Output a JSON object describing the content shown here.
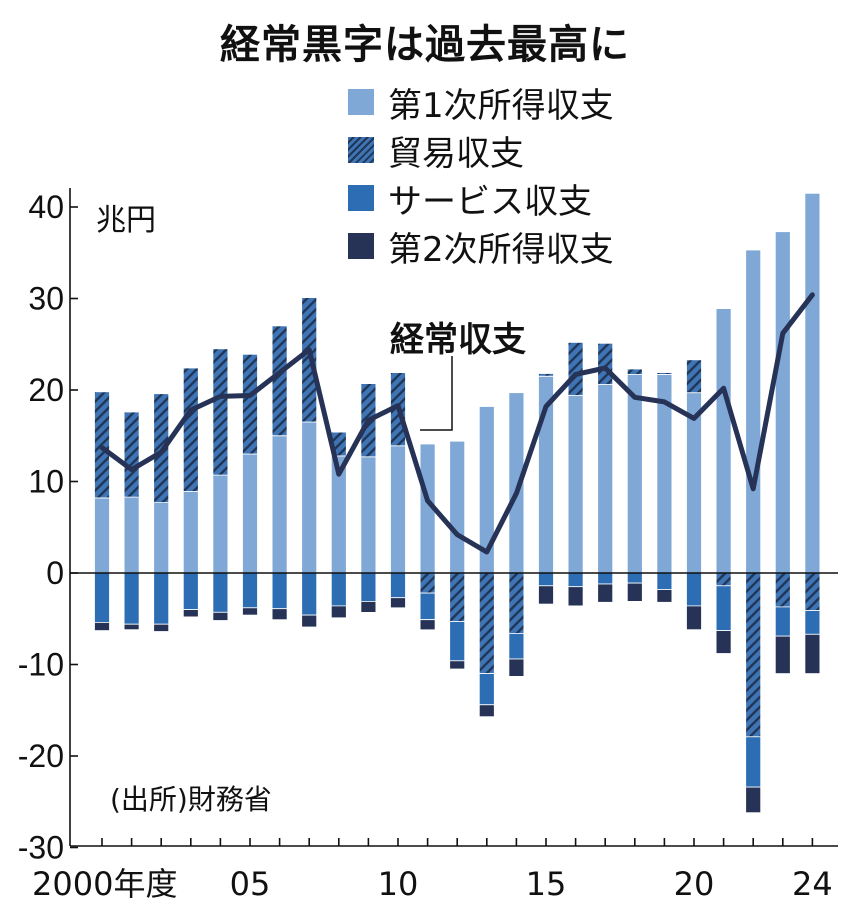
{
  "title": "経常黒字は過去最高に",
  "unit_label": "兆円",
  "source": "(出所)財務省",
  "line_label": "経常収支",
  "colors": {
    "primary_income": "#7fa8d6",
    "trade": "#3f74b5",
    "trade_hatch": "#1f3657",
    "services": "#2d6db3",
    "secondary_income": "#263357",
    "current_account_line": "#263357"
  },
  "legend": [
    {
      "label": "第1次所得収支",
      "color": "#7fa8d6",
      "hatch": false
    },
    {
      "label": "貿易収支",
      "color": "#3f74b5",
      "hatch": true
    },
    {
      "label": "サービス収支",
      "color": "#2d6db3",
      "hatch": false
    },
    {
      "label": "第2次所得収支",
      "color": "#263357",
      "hatch": false
    }
  ],
  "chart_data": {
    "type": "bar",
    "stacked": true,
    "title": "経常黒字は過去最高に",
    "ylabel": "兆円",
    "ylim": [
      -30,
      42
    ],
    "yticks": [
      40,
      30,
      20,
      10,
      0,
      -10,
      -20,
      -30
    ],
    "x": [
      2000,
      2001,
      2002,
      2003,
      2004,
      2005,
      2006,
      2007,
      2008,
      2009,
      2010,
      2011,
      2012,
      2013,
      2014,
      2015,
      2016,
      2017,
      2018,
      2019,
      2020,
      2021,
      2022,
      2023,
      2024
    ],
    "xtick_labels": [
      {
        "x": 2000,
        "label": "2000年度"
      },
      {
        "x": 2005,
        "label": "05"
      },
      {
        "x": 2010,
        "label": "10"
      },
      {
        "x": 2015,
        "label": "15"
      },
      {
        "x": 2020,
        "label": "20"
      },
      {
        "x": 2024,
        "label": "24"
      }
    ],
    "legend_position": "top-right",
    "grid": false,
    "series": [
      {
        "name": "第1次所得収支",
        "values": [
          8.2,
          8.3,
          7.7,
          8.9,
          10.7,
          13.0,
          15.0,
          16.5,
          12.8,
          12.7,
          13.9,
          14.1,
          14.4,
          18.2,
          19.7,
          21.5,
          19.4,
          20.6,
          21.7,
          21.7,
          19.7,
          28.9,
          35.3,
          37.3,
          41.5
        ]
      },
      {
        "name": "貿易収支",
        "values": [
          11.6,
          9.3,
          11.9,
          13.5,
          13.8,
          10.9,
          12.0,
          13.6,
          2.6,
          8.0,
          8.0,
          -2.2,
          -5.3,
          -11.0,
          -6.6,
          0.3,
          5.8,
          4.5,
          0.6,
          0.2,
          3.6,
          -1.4,
          -17.9,
          -3.7,
          -4.1
        ]
      },
      {
        "name": "サービス収支",
        "values": [
          -5.4,
          -5.6,
          -5.6,
          -4.0,
          -4.3,
          -3.8,
          -3.9,
          -4.6,
          -3.6,
          -3.1,
          -2.7,
          -2.9,
          -4.3,
          -3.4,
          -2.8,
          -1.4,
          -1.5,
          -1.2,
          -1.1,
          -1.8,
          -3.6,
          -4.9,
          -5.5,
          -3.2,
          -2.6
        ]
      },
      {
        "name": "第2次所得収支",
        "values": [
          -0.9,
          -0.6,
          -0.8,
          -0.8,
          -0.9,
          -0.8,
          -1.2,
          -1.3,
          -1.3,
          -1.2,
          -1.1,
          -1.1,
          -0.9,
          -1.3,
          -1.9,
          -2.0,
          -2.1,
          -2.0,
          -2.0,
          -1.4,
          -2.6,
          -2.5,
          -2.8,
          -4.1,
          -4.3
        ]
      },
      {
        "name": "経常収支",
        "type": "line",
        "values": [
          13.7,
          11.3,
          13.2,
          17.8,
          19.3,
          19.4,
          21.9,
          24.4,
          10.8,
          16.7,
          18.3,
          7.9,
          4.2,
          2.3,
          8.7,
          18.2,
          21.7,
          22.4,
          19.2,
          18.7,
          16.9,
          20.2,
          9.2,
          26.2,
          30.4
        ]
      }
    ]
  }
}
